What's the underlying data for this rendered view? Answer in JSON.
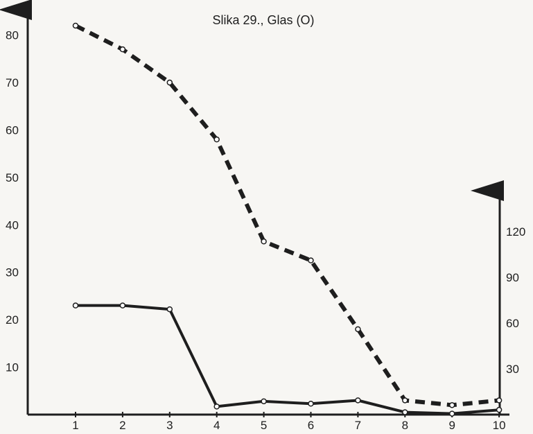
{
  "chart_data": {
    "type": "line",
    "title": "Slika 29., Glas (O)",
    "xlabel": "",
    "ylabel": "",
    "x": [
      1,
      2,
      3,
      4,
      5,
      6,
      7,
      8,
      9,
      10
    ],
    "xticks": [
      1,
      2,
      3,
      4,
      5,
      6,
      7,
      8,
      9,
      10
    ],
    "y_left_ticks": [
      10,
      20,
      30,
      40,
      50,
      60,
      70,
      80
    ],
    "y_right_ticks": [
      30,
      60,
      90,
      120
    ],
    "ylim_left": [
      0,
      85
    ],
    "ylim_right": [
      0,
      145
    ],
    "grid": false,
    "series": [
      {
        "style": "dashed",
        "axis": "left",
        "color": "#1e1e1e",
        "values": [
          82,
          77,
          70,
          58,
          36.5,
          32.5,
          18,
          3,
          2,
          3
        ]
      },
      {
        "style": "solid",
        "axis": "left",
        "color": "#1e1e1e",
        "values": [
          23,
          23,
          22.2,
          1.7,
          2.8,
          2.3,
          3,
          0.5,
          0.2,
          1
        ]
      }
    ]
  }
}
